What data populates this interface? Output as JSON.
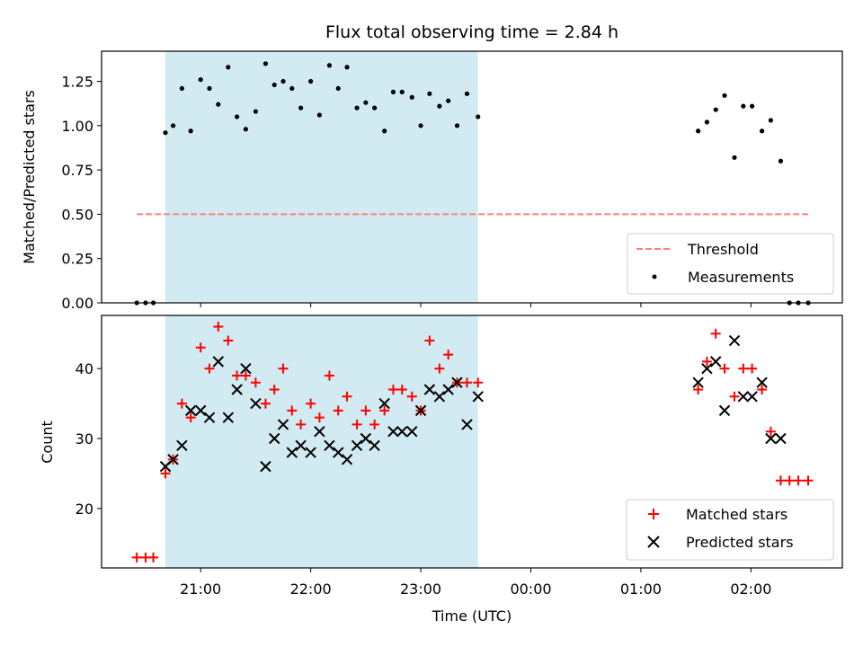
{
  "chart_data": {
    "type": "scatter",
    "title": "Flux total observing time = 2.84 h",
    "xlabel": "Time (UTC)",
    "x_unit": "hours since 00:00 UTC (negative = previous day)",
    "xlim": [
      -3.9,
      2.83
    ],
    "x_ticks": [
      {
        "value": -3,
        "label": "21:00"
      },
      {
        "value": -2,
        "label": "22:00"
      },
      {
        "value": -1,
        "label": "23:00"
      },
      {
        "value": 0,
        "label": "00:00"
      },
      {
        "value": 1,
        "label": "01:00"
      },
      {
        "value": 2,
        "label": "02:00"
      }
    ],
    "shaded_region": {
      "x_start": -3.32,
      "x_end": -0.48,
      "color": "#add8e6"
    },
    "panels": [
      {
        "ylabel": "Matched/Predicted stars",
        "ylim": [
          0,
          1.42
        ],
        "y_ticks": [
          {
            "value": 0,
            "label": "0.00"
          },
          {
            "value": 0.25,
            "label": "0.25"
          },
          {
            "value": 0.5,
            "label": "0.50"
          },
          {
            "value": 0.75,
            "label": "0.75"
          },
          {
            "value": 1.0,
            "label": "1.00"
          },
          {
            "value": 1.25,
            "label": "1.25"
          }
        ],
        "legend_position": "lower-right",
        "series": [
          {
            "name": "Threshold",
            "kind": "dashed-line",
            "color": "#ff7f7f",
            "x": [
              -3.58,
              2.53
            ],
            "y": [
              0.5,
              0.5
            ]
          },
          {
            "name": "Measurements",
            "kind": "dot",
            "color": "#000000",
            "x": [
              -3.58,
              -3.5,
              -3.43,
              -3.32,
              -3.25,
              -3.17,
              -3.09,
              -3.0,
              -2.92,
              -2.84,
              -2.75,
              -2.67,
              -2.59,
              -2.5,
              -2.41,
              -2.33,
              -2.25,
              -2.17,
              -2.09,
              -2.0,
              -1.92,
              -1.83,
              -1.75,
              -1.67,
              -1.58,
              -1.5,
              -1.42,
              -1.33,
              -1.25,
              -1.17,
              -1.08,
              -1.0,
              -0.92,
              -0.83,
              -0.75,
              -0.67,
              -0.58,
              -0.48,
              1.52,
              1.6,
              1.68,
              1.76,
              1.85,
              1.93,
              2.01,
              2.1,
              2.18,
              2.27,
              2.35,
              2.43,
              2.52
            ],
            "y": [
              0.0,
              0.0,
              0.0,
              0.96,
              1.0,
              1.21,
              0.97,
              1.26,
              1.21,
              1.12,
              1.33,
              1.05,
              0.98,
              1.08,
              1.35,
              1.23,
              1.25,
              1.21,
              1.1,
              1.25,
              1.06,
              1.34,
              1.21,
              1.33,
              1.1,
              1.13,
              1.1,
              0.97,
              1.19,
              1.19,
              1.16,
              1.0,
              1.18,
              1.11,
              1.14,
              1.0,
              1.18,
              1.05,
              0.97,
              1.02,
              1.09,
              1.17,
              0.82,
              1.11,
              1.11,
              0.97,
              1.03,
              0.8,
              0.0,
              0.0,
              0.0
            ]
          }
        ]
      },
      {
        "ylabel": "Count",
        "ylim": [
          11.5,
          47.6
        ],
        "y_ticks": [
          {
            "value": 20,
            "label": "20"
          },
          {
            "value": 30,
            "label": "30"
          },
          {
            "value": 40,
            "label": "40"
          }
        ],
        "legend_position": "lower-right",
        "series": [
          {
            "name": "Matched stars",
            "kind": "plus",
            "color": "#ff0000",
            "x": [
              -3.58,
              -3.5,
              -3.43,
              -3.32,
              -3.25,
              -3.17,
              -3.09,
              -3.0,
              -2.92,
              -2.84,
              -2.75,
              -2.67,
              -2.59,
              -2.5,
              -2.41,
              -2.33,
              -2.25,
              -2.17,
              -2.09,
              -2.0,
              -1.92,
              -1.83,
              -1.75,
              -1.67,
              -1.58,
              -1.5,
              -1.42,
              -1.33,
              -1.25,
              -1.17,
              -1.08,
              -1.0,
              -0.92,
              -0.83,
              -0.75,
              -0.67,
              -0.58,
              -0.48,
              1.52,
              1.6,
              1.68,
              1.76,
              1.85,
              1.93,
              2.01,
              2.1,
              2.18,
              2.27,
              2.35,
              2.43,
              2.52
            ],
            "y": [
              13,
              13,
              13,
              25,
              27,
              35,
              33,
              43,
              40,
              46,
              44,
              39,
              39,
              38,
              35,
              37,
              40,
              34,
              32,
              35,
              33,
              39,
              34,
              36,
              32,
              34,
              32,
              34,
              37,
              37,
              36,
              34,
              44,
              40,
              42,
              38,
              38,
              38,
              37,
              41,
              45,
              40,
              36,
              40,
              40,
              37,
              31,
              24,
              24,
              24,
              24
            ]
          },
          {
            "name": "Predicted stars",
            "kind": "x",
            "color": "#000000",
            "x": [
              -3.32,
              -3.25,
              -3.17,
              -3.09,
              -3.0,
              -2.92,
              -2.84,
              -2.75,
              -2.67,
              -2.59,
              -2.5,
              -2.41,
              -2.33,
              -2.25,
              -2.17,
              -2.09,
              -2.0,
              -1.92,
              -1.83,
              -1.75,
              -1.67,
              -1.58,
              -1.5,
              -1.42,
              -1.33,
              -1.25,
              -1.17,
              -1.08,
              -1.0,
              -0.92,
              -0.83,
              -0.75,
              -0.67,
              -0.58,
              -0.48,
              1.52,
              1.6,
              1.68,
              1.76,
              1.85,
              1.93,
              2.01,
              2.1,
              2.18,
              2.27
            ],
            "y": [
              26,
              27,
              29,
              34,
              34,
              33,
              41,
              33,
              37,
              40,
              35,
              26,
              30,
              32,
              28,
              29,
              28,
              31,
              29,
              28,
              27,
              29,
              30,
              29,
              35,
              31,
              31,
              31,
              34,
              37,
              36,
              37,
              38,
              32,
              36,
              38,
              40,
              41,
              34,
              44,
              36,
              36,
              38,
              30,
              30
            ]
          }
        ]
      }
    ]
  }
}
